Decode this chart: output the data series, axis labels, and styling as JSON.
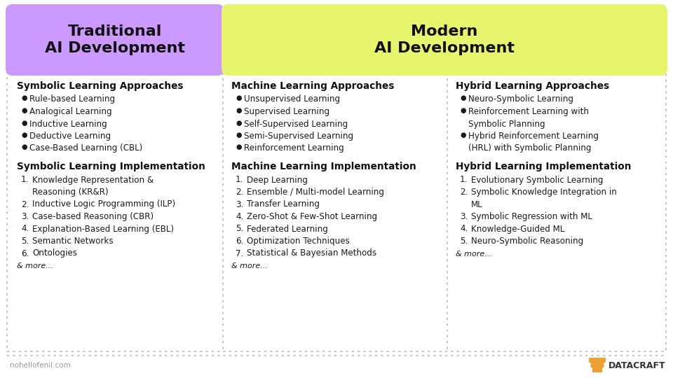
{
  "bg_color": "#ffffff",
  "title_traditional": "Traditional\nAI Development",
  "title_modern": "Modern\nAI Development",
  "title_trad_bg": "#cc99ff",
  "title_modern_bg": "#e6f56c",
  "col1_header1": "Symbolic Learning Approaches",
  "col1_bullets1": [
    "Rule-based Learning",
    "Analogical Learning",
    "Inductive Learning",
    "Deductive Learning",
    "Case-Based Learning (CBL)"
  ],
  "col1_header2": "Symbolic Learning Implementation",
  "col1_numbered2": [
    [
      "Knowledge Representation &",
      "Reasoning (KR&R)"
    ],
    [
      "Inductive Logic Programming (ILP)"
    ],
    [
      "Case-based Reasoning (CBR)"
    ],
    [
      "Explanation-Based Learning (EBL)"
    ],
    [
      "Semantic Networks"
    ],
    [
      "Ontologies"
    ]
  ],
  "col2_header1": "Machine Learning Approaches",
  "col2_bullets1": [
    "Unsupervised Learning",
    "Supervised Learning",
    "Self-Supervised Learning",
    "Semi-Supervised Learning",
    "Reinforcement Learning"
  ],
  "col2_header2": "Machine Learning Implementation",
  "col2_numbered2": [
    [
      "Deep Learning"
    ],
    [
      "Ensemble / Multi-model Learning"
    ],
    [
      "Transfer Learning"
    ],
    [
      "Zero-Shot & Few-Shot Learning"
    ],
    [
      "Federated Learning"
    ],
    [
      "Optimization Techniques"
    ],
    [
      "Statistical & Bayesian Methods"
    ]
  ],
  "col3_header1": "Hybrid Learning Approaches",
  "col3_bullets1": [
    [
      "Neuro-Symbolic Learning"
    ],
    [
      "Reinforcement Learning with",
      "Symbolic Planning"
    ],
    [
      "Hybrid Reinforcement Learning",
      "(HRL) with Symbolic Planning"
    ]
  ],
  "col3_header2": "Hybrid Learning Implementation",
  "col3_numbered2": [
    [
      "Evolutionary Symbolic Learning"
    ],
    [
      "Symbolic Knowledge Integration in",
      "ML"
    ],
    [
      "Symbolic Regression with ML"
    ],
    [
      "Knowledge-Guided ML"
    ],
    [
      "Neuro-Symbolic Reasoning"
    ]
  ],
  "footer_left": "nohellofenil.com",
  "footer_right": "DATACRAFT",
  "dotted_color": "#bbbbbb",
  "text_color": "#1a1a1a",
  "header_color": "#111111",
  "col_dividers": [
    320,
    640
  ],
  "fig_width": 960,
  "fig_height": 540
}
